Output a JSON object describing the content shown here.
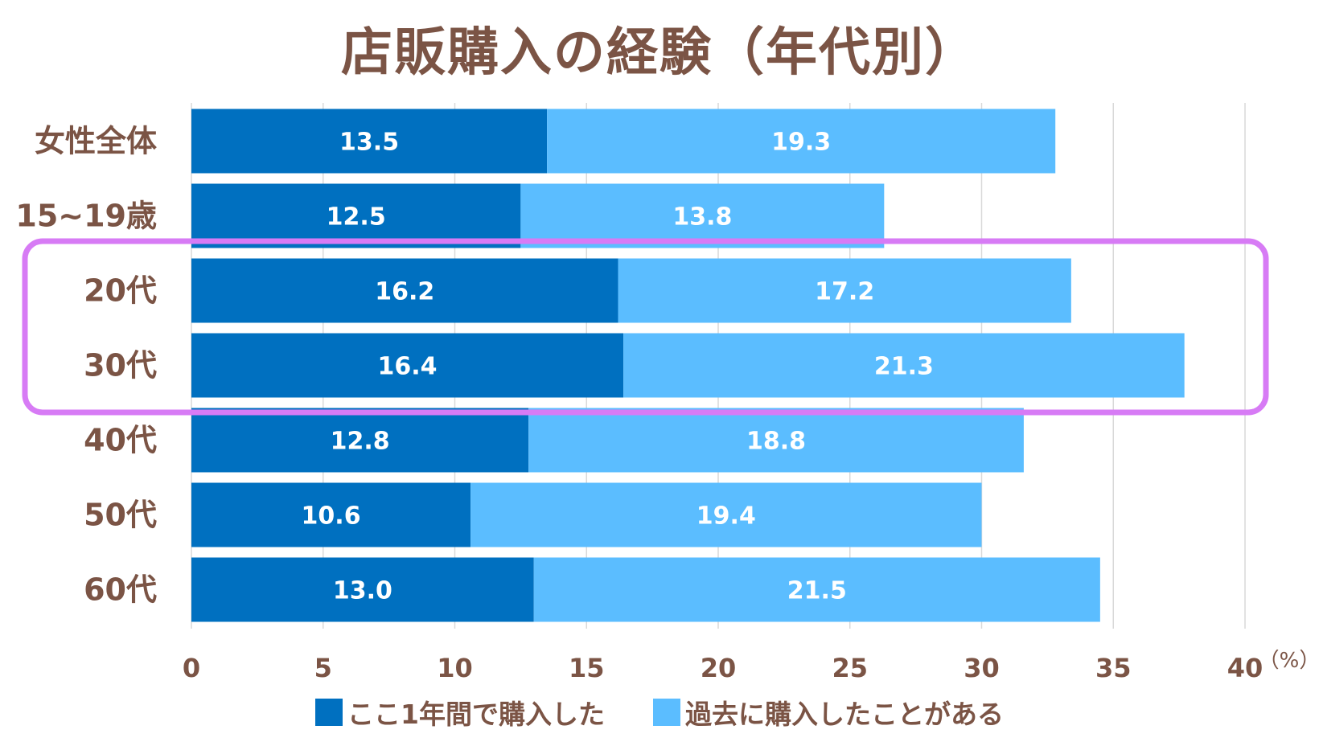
{
  "chart_data": {
    "type": "bar",
    "orientation": "horizontal",
    "stacked": true,
    "title": "店販購入の経験（年代別）",
    "categories": [
      "女性全体",
      "15~19歳",
      "20代",
      "30代",
      "40代",
      "50代",
      "60代"
    ],
    "series": [
      {
        "name": "ここ1年間で購入した",
        "color": "#0070C0",
        "values": [
          13.5,
          12.5,
          16.2,
          16.4,
          12.8,
          10.6,
          13.0
        ]
      },
      {
        "name": "過去に購入したことがある",
        "color": "#5BBDFF",
        "values": [
          19.3,
          13.8,
          17.2,
          21.3,
          18.8,
          19.4,
          21.5
        ]
      }
    ],
    "data_labels": [
      [
        "13.5",
        "12.5",
        "16.2",
        "16.4",
        "12.8",
        "10.6",
        "13.0"
      ],
      [
        "19.3",
        "13.8",
        "17.2",
        "21.3",
        "18.8",
        "19.4",
        "21.5"
      ]
    ],
    "xlim": [
      0,
      40
    ],
    "xticks": [
      "0",
      "5",
      "10",
      "15",
      "20",
      "25",
      "30",
      "35",
      "40"
    ],
    "xunit": "（%）",
    "grid": true,
    "legend_position": "bottom",
    "highlight": {
      "categories": [
        "20代",
        "30代"
      ],
      "color": "#D77BF5"
    },
    "text_color": "#7B5445"
  }
}
